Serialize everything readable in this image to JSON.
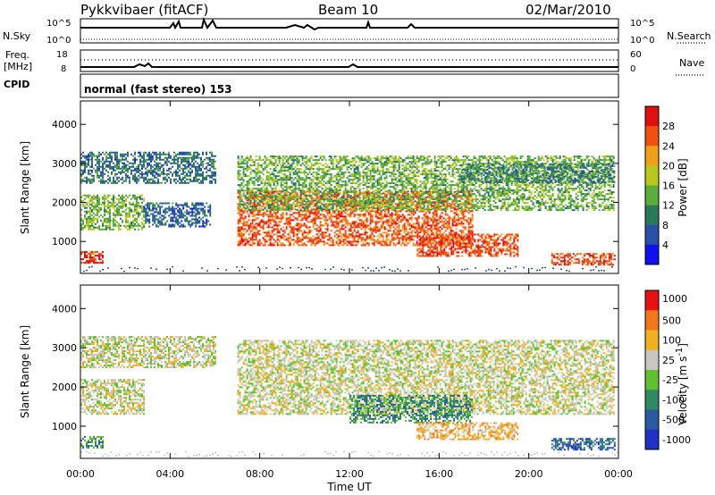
{
  "header": {
    "station": "Pykkvibaer (fitACF)",
    "beam": "Beam 10",
    "date": "02/Mar/2010"
  },
  "strip": {
    "nsky_label": "N.Sky",
    "nsearch_label": "N.Search",
    "nsky_ticks": [
      "10^5",
      "10^0"
    ],
    "nsearch_ticks": [
      "10^5",
      "10^0"
    ],
    "freq_label_1": "Freq.",
    "freq_label_2": "[MHz]",
    "freq_ticks": [
      "18",
      "8"
    ],
    "nave_label": "Nave",
    "nave_ticks": [
      "60",
      "0"
    ],
    "cpid_label": "CPID",
    "cpid_text": "normal (fast stereo) 153"
  },
  "chart_data": [
    {
      "type": "heatmap",
      "panel": "power",
      "ylabel": "Slant Range [km]",
      "ylim": [
        180,
        4600
      ],
      "yticks": [
        1000,
        2000,
        3000,
        4000
      ],
      "xlim": [
        0,
        24
      ],
      "colorbar": {
        "label": "Power [dB]",
        "ticks": [
          "4",
          "8",
          "12",
          "16",
          "20",
          "24",
          "28"
        ],
        "colors": [
          "#1010f0",
          "#2a4fa8",
          "#2a7a5a",
          "#5bae3c",
          "#b8c81c",
          "#f0a018",
          "#f05010",
          "#e01010"
        ]
      },
      "bands": [
        {
          "t0": 0.0,
          "t1": 6.0,
          "r0": 2500,
          "r1": 3300,
          "level": 1.6
        },
        {
          "t0": 0.0,
          "t1": 2.8,
          "r0": 1300,
          "r1": 2200,
          "level": 3.2
        },
        {
          "t0": 2.8,
          "t1": 5.8,
          "r0": 1400,
          "r1": 2000,
          "level": 1.4
        },
        {
          "t0": 0.0,
          "t1": 1.0,
          "r0": 450,
          "r1": 750,
          "level": 6.4
        },
        {
          "t0": 7.0,
          "t1": 17.5,
          "r0": 900,
          "r1": 2300,
          "level": 6.0
        },
        {
          "t0": 7.0,
          "t1": 23.8,
          "r0": 1800,
          "r1": 3200,
          "level": 3.0
        },
        {
          "t0": 15.0,
          "t1": 19.5,
          "r0": 650,
          "r1": 1200,
          "level": 6.2
        },
        {
          "t0": 21.0,
          "t1": 23.8,
          "r0": 400,
          "r1": 700,
          "level": 6.2
        },
        {
          "t0": 17.0,
          "t1": 23.8,
          "r0": 2500,
          "r1": 3000,
          "level": 2.0
        }
      ]
    },
    {
      "type": "heatmap",
      "panel": "velocity",
      "ylabel": "Slant Range [km]",
      "ylim": [
        180,
        4600
      ],
      "yticks": [
        1000,
        2000,
        3000,
        4000
      ],
      "xlim": [
        0,
        24
      ],
      "xticks": [
        "00:00",
        "04:00",
        "08:00",
        "12:00",
        "16:00",
        "20:00",
        "00:00"
      ],
      "xlabel": "Time UT",
      "colorbar": {
        "label": "Velocity [m s",
        "label_sup": "-1",
        "label_end": "]",
        "ticks": [
          "1000",
          "500",
          "100",
          "25",
          "-25",
          "-100",
          "-500",
          "-1000"
        ],
        "colors": [
          "#1e30c8",
          "#2a5aa0",
          "#2e8a60",
          "#60c030",
          "#c8c8c0",
          "#f0b020",
          "#f07818",
          "#e81010"
        ]
      },
      "bands": [
        {
          "t0": 0.0,
          "t1": 6.0,
          "r0": 2500,
          "r1": 3300,
          "level": 4
        },
        {
          "t0": 0.0,
          "t1": 2.8,
          "r0": 1300,
          "r1": 2200,
          "level": 4
        },
        {
          "t0": 0.0,
          "t1": 1.0,
          "r0": 450,
          "r1": 750,
          "level": 2
        },
        {
          "t0": 7.0,
          "t1": 23.8,
          "r0": 1300,
          "r1": 3200,
          "level": 4
        },
        {
          "t0": 12.0,
          "t1": 17.5,
          "r0": 1100,
          "r1": 1800,
          "level": 2
        },
        {
          "t0": 15.0,
          "t1": 19.5,
          "r0": 650,
          "r1": 1100,
          "level": 5
        },
        {
          "t0": 21.0,
          "t1": 23.8,
          "r0": 400,
          "r1": 700,
          "level": 1
        }
      ]
    }
  ]
}
